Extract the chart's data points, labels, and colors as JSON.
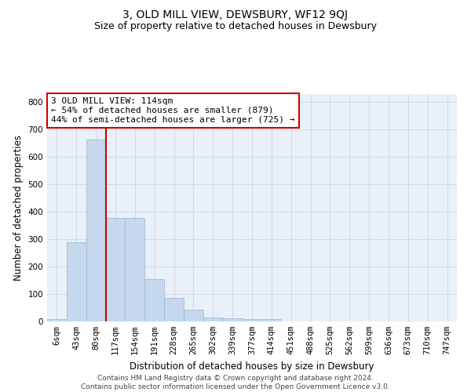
{
  "title": "3, OLD MILL VIEW, DEWSBURY, WF12 9QJ",
  "subtitle": "Size of property relative to detached houses in Dewsbury",
  "xlabel": "Distribution of detached houses by size in Dewsbury",
  "ylabel": "Number of detached properties",
  "bin_labels": [
    "6sqm",
    "43sqm",
    "80sqm",
    "117sqm",
    "154sqm",
    "191sqm",
    "228sqm",
    "265sqm",
    "302sqm",
    "339sqm",
    "377sqm",
    "414sqm",
    "451sqm",
    "488sqm",
    "525sqm",
    "562sqm",
    "599sqm",
    "636sqm",
    "673sqm",
    "710sqm",
    "747sqm"
  ],
  "bar_values": [
    8,
    290,
    665,
    378,
    378,
    155,
    87,
    44,
    13,
    12,
    10,
    8,
    0,
    0,
    0,
    0,
    0,
    0,
    0,
    0,
    0
  ],
  "bar_color": "#c5d8ed",
  "bar_edge_color": "#9ab5d0",
  "vline_x": 2.5,
  "vline_color": "#cc0000",
  "annotation_text": "3 OLD MILL VIEW: 114sqm\n← 54% of detached houses are smaller (879)\n44% of semi-detached houses are larger (725) →",
  "annotation_box_color": "#ffffff",
  "annotation_box_edge_color": "#cc0000",
  "ylim": [
    0,
    830
  ],
  "yticks": [
    0,
    100,
    200,
    300,
    400,
    500,
    600,
    700,
    800
  ],
  "grid_color": "#d0d8e8",
  "bg_color": "#eaf0f8",
  "footer_text": "Contains HM Land Registry data © Crown copyright and database right 2024.\nContains public sector information licensed under the Open Government Licence v3.0.",
  "title_fontsize": 10,
  "subtitle_fontsize": 9,
  "axis_label_fontsize": 8.5,
  "tick_fontsize": 7.5,
  "annotation_fontsize": 8,
  "footer_fontsize": 6.5
}
